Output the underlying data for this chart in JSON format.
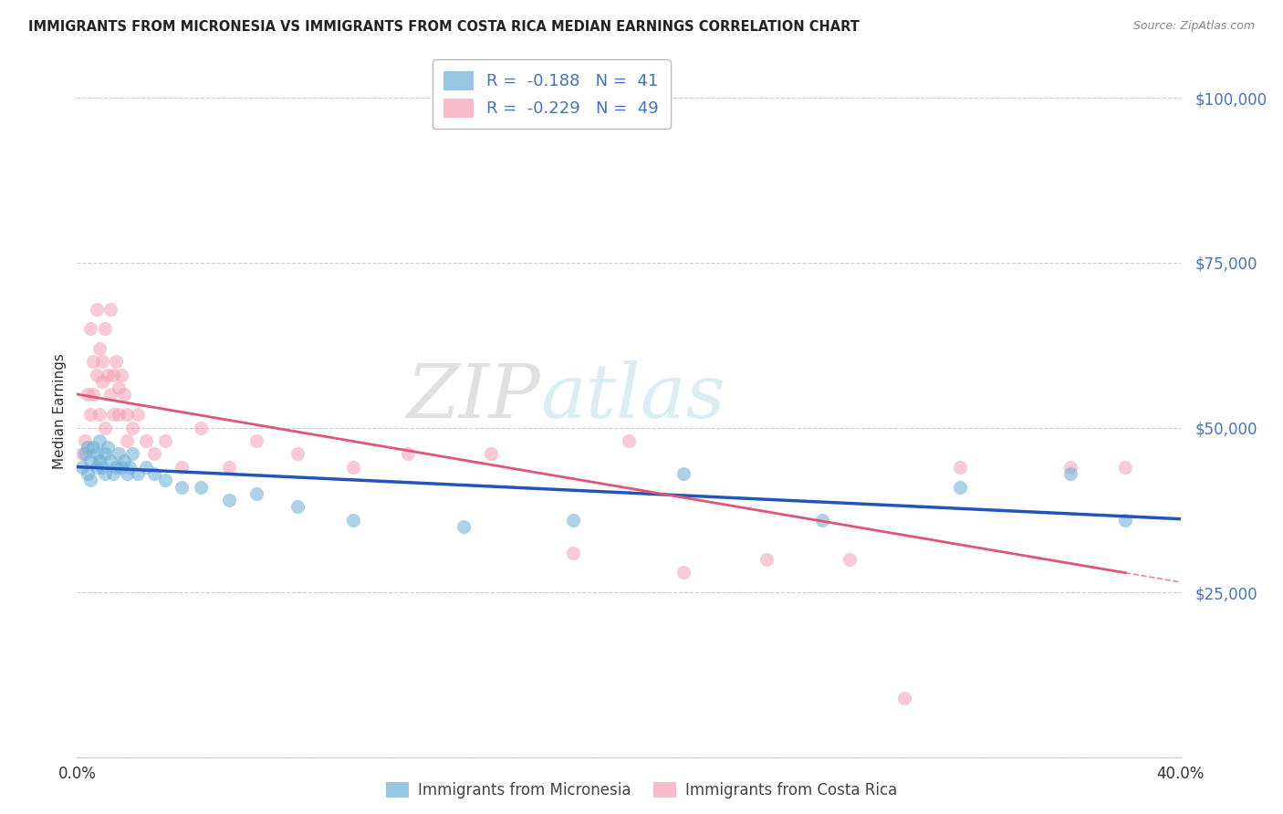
{
  "title": "IMMIGRANTS FROM MICRONESIA VS IMMIGRANTS FROM COSTA RICA MEDIAN EARNINGS CORRELATION CHART",
  "source": "Source: ZipAtlas.com",
  "ylabel": "Median Earnings",
  "watermark_zip": "ZIP",
  "watermark_atlas": "atlas",
  "legend_mic_R": -0.188,
  "legend_mic_N": 41,
  "legend_cr_R": -0.229,
  "legend_cr_N": 49,
  "mic_color": "#6baed6",
  "cr_color": "#f4a0b5",
  "mic_line_color": "#2255bb",
  "cr_line_color": "#e05575",
  "micronesia_x": [
    0.002,
    0.003,
    0.004,
    0.004,
    0.005,
    0.005,
    0.006,
    0.007,
    0.007,
    0.008,
    0.008,
    0.009,
    0.01,
    0.01,
    0.011,
    0.012,
    0.013,
    0.014,
    0.015,
    0.016,
    0.017,
    0.018,
    0.019,
    0.02,
    0.022,
    0.025,
    0.028,
    0.032,
    0.038,
    0.045,
    0.055,
    0.065,
    0.08,
    0.1,
    0.14,
    0.18,
    0.22,
    0.27,
    0.32,
    0.36,
    0.38
  ],
  "micronesia_y": [
    44000,
    46000,
    43000,
    47000,
    45000,
    42000,
    47000,
    46000,
    44000,
    48000,
    45000,
    44000,
    46000,
    43000,
    47000,
    45000,
    43000,
    44000,
    46000,
    44000,
    45000,
    43000,
    44000,
    46000,
    43000,
    44000,
    43000,
    42000,
    41000,
    41000,
    39000,
    40000,
    38000,
    36000,
    35000,
    36000,
    43000,
    36000,
    41000,
    43000,
    36000
  ],
  "costarica_x": [
    0.002,
    0.003,
    0.004,
    0.005,
    0.005,
    0.006,
    0.006,
    0.007,
    0.007,
    0.008,
    0.008,
    0.009,
    0.009,
    0.01,
    0.01,
    0.011,
    0.012,
    0.012,
    0.013,
    0.013,
    0.014,
    0.015,
    0.015,
    0.016,
    0.017,
    0.018,
    0.018,
    0.02,
    0.022,
    0.025,
    0.028,
    0.032,
    0.038,
    0.045,
    0.055,
    0.065,
    0.08,
    0.1,
    0.12,
    0.15,
    0.18,
    0.2,
    0.22,
    0.25,
    0.28,
    0.3,
    0.32,
    0.36,
    0.38
  ],
  "costarica_y": [
    46000,
    48000,
    55000,
    65000,
    52000,
    60000,
    55000,
    68000,
    58000,
    62000,
    52000,
    57000,
    60000,
    65000,
    50000,
    58000,
    55000,
    68000,
    58000,
    52000,
    60000,
    56000,
    52000,
    58000,
    55000,
    48000,
    52000,
    50000,
    52000,
    48000,
    46000,
    48000,
    44000,
    50000,
    44000,
    48000,
    46000,
    44000,
    46000,
    46000,
    31000,
    48000,
    28000,
    30000,
    30000,
    9000,
    44000,
    44000,
    44000
  ],
  "xlim": [
    0.0,
    0.4
  ],
  "ylim": [
    0,
    105000
  ],
  "yticks": [
    0,
    25000,
    50000,
    75000,
    100000
  ],
  "ytick_labels": [
    "",
    "$25,000",
    "$50,000",
    "$75,000",
    "$100,000"
  ],
  "xticks": [
    0.0,
    0.1,
    0.2,
    0.3,
    0.4
  ],
  "xtick_labels": [
    "0.0%",
    "",
    "",
    "",
    "40.0%"
  ],
  "background_color": "#ffffff",
  "grid_color": "#cccccc",
  "scatter_alpha": 0.55,
  "scatter_size": 120
}
